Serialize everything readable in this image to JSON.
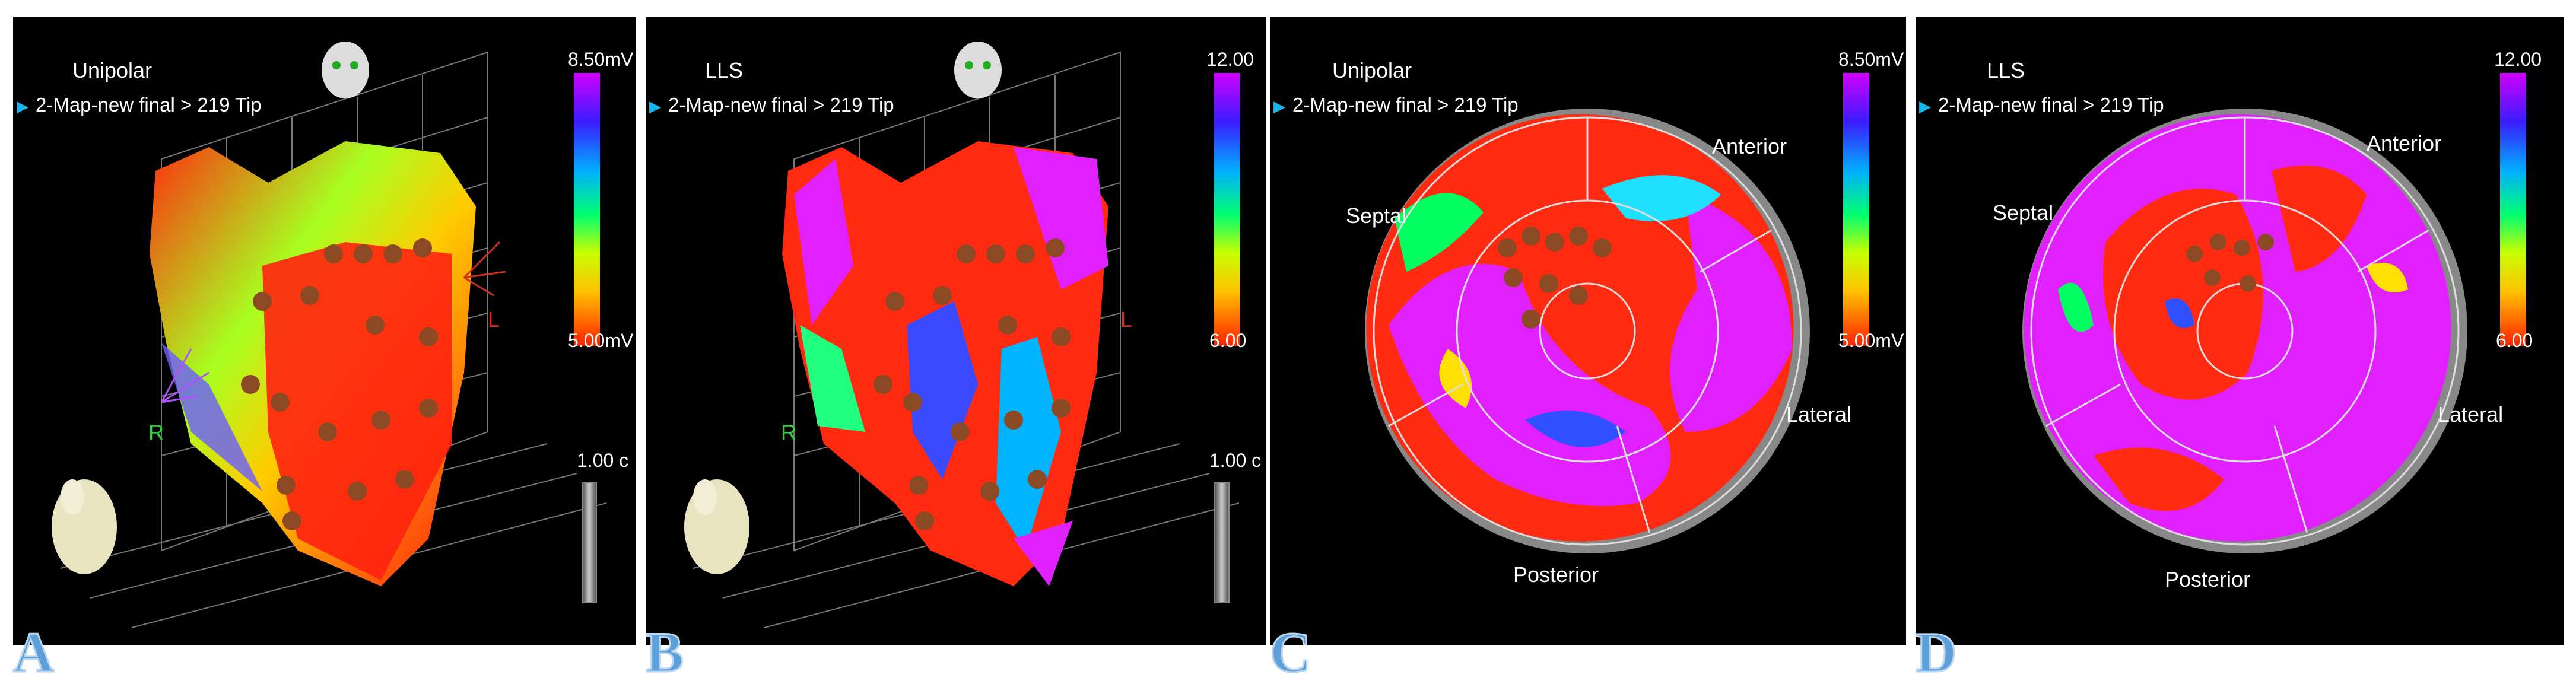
{
  "panels": [
    {
      "letter": "A",
      "title": "Unipolar",
      "map_name": "2-Map-new final > 219 Tip",
      "scale_top": "8.50mV",
      "scale_bottom": "5.00mV",
      "view": "3d",
      "slider_label": "1.00 c",
      "orient_right": "R",
      "orient_left": "L"
    },
    {
      "letter": "B",
      "title": "LLS",
      "map_name": "2-Map-new final > 219 Tip",
      "scale_top": "12.00",
      "scale_bottom": "6.00",
      "view": "3d",
      "slider_label": "1.00 c",
      "orient_right": "R",
      "orient_left": "L"
    },
    {
      "letter": "C",
      "title": "Unipolar",
      "map_name": "2-Map-new final > 219 Tip",
      "scale_top": "8.50mV",
      "scale_bottom": "5.00mV",
      "view": "bullseye",
      "labels": {
        "anterior": "Anterior",
        "septal": "Septal",
        "lateral": "Lateral",
        "posterior": "Posterior"
      }
    },
    {
      "letter": "D",
      "title": "LLS",
      "map_name": "2-Map-new final > 219 Tip",
      "scale_top": "12.00",
      "scale_bottom": "6.00",
      "view": "bullseye",
      "labels": {
        "anterior": "Anterior",
        "septal": "Septal",
        "lateral": "Lateral",
        "posterior": "Posterior"
      }
    }
  ],
  "colors": {
    "accent": "#19b6e8",
    "letter": "#5d9fd8",
    "background": "#000000"
  }
}
